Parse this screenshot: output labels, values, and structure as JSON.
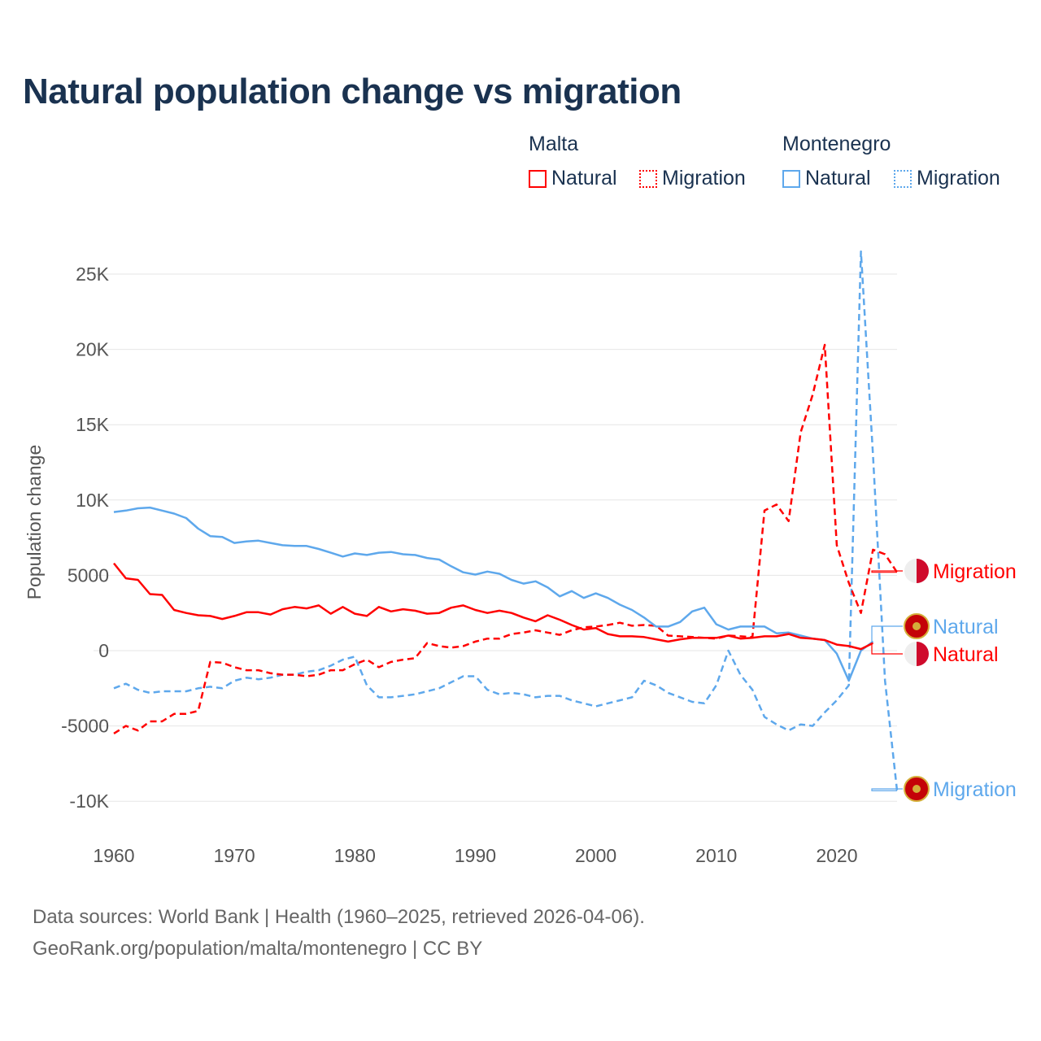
{
  "title": "Natural population change vs migration",
  "legend": {
    "groups": [
      {
        "name": "Malta",
        "items": [
          {
            "label": "Natural",
            "style": "solid"
          },
          {
            "label": "Migration",
            "style": "dotted"
          }
        ],
        "color": "#ff0000"
      },
      {
        "name": "Montenegro",
        "items": [
          {
            "label": "Natural",
            "style": "solid"
          },
          {
            "label": "Migration",
            "style": "dotted"
          }
        ],
        "color": "#5ea8ec"
      }
    ]
  },
  "source": {
    "line1": "Data sources: World Bank | Health (1960–2025, retrieved 2026-04-06).",
    "line2": "GeoRank.org/population/malta/montenegro | CC BY"
  },
  "chart_data": {
    "type": "line",
    "title": "Natural population change vs migration",
    "xlabel": "",
    "ylabel": "Population change",
    "xlim": [
      1960,
      2025
    ],
    "ylim": [
      -10000,
      25000
    ],
    "x_ticks": [
      1960,
      1970,
      1980,
      1990,
      2000,
      2010,
      2020
    ],
    "x_tick_labels": [
      "1960",
      "1970",
      "1980",
      "1990",
      "2000",
      "2010",
      "2020"
    ],
    "y_ticks": [
      -10000,
      -5000,
      0,
      5000,
      10000,
      15000,
      20000,
      25000
    ],
    "y_tick_labels": [
      "-10K",
      "-5000",
      "0",
      "5000",
      "10K",
      "15K",
      "20K",
      "25K"
    ],
    "grid": true,
    "series": [
      {
        "name": "Malta Natural",
        "end_label": "Natural",
        "color": "#ff0000",
        "dash": false,
        "start": 1960,
        "values": [
          5800,
          4800,
          4700,
          3750,
          3700,
          2700,
          2500,
          2350,
          2300,
          2100,
          2300,
          2550,
          2550,
          2400,
          2750,
          2900,
          2800,
          3000,
          2450,
          2900,
          2450,
          2300,
          2900,
          2600,
          2750,
          2650,
          2450,
          2500,
          2850,
          3000,
          2700,
          2500,
          2650,
          2500,
          2200,
          1950,
          2350,
          2050,
          1700,
          1400,
          1500,
          1100,
          950,
          950,
          900,
          750,
          600,
          750,
          850,
          850,
          850,
          1000,
          800,
          850,
          950,
          950,
          1100,
          850,
          800,
          700,
          400,
          300,
          100,
          500
        ]
      },
      {
        "name": "Malta Migration",
        "end_label": "Migration",
        "color": "#ff0000",
        "dash": true,
        "start": 1960,
        "values": [
          -5500,
          -5000,
          -5300,
          -4700,
          -4700,
          -4200,
          -4200,
          -4000,
          -750,
          -800,
          -1100,
          -1300,
          -1300,
          -1500,
          -1600,
          -1600,
          -1700,
          -1600,
          -1300,
          -1300,
          -900,
          -600,
          -1100,
          -750,
          -600,
          -500,
          500,
          300,
          200,
          300,
          600,
          800,
          800,
          1100,
          1200,
          1350,
          1200,
          1050,
          1350,
          1550,
          1600,
          1700,
          1850,
          1650,
          1700,
          1650,
          1000,
          950,
          900,
          850,
          800,
          1000,
          950,
          900,
          9300,
          9700,
          8600,
          14500,
          17000,
          20300,
          7000,
          4500,
          2500,
          6700,
          6400,
          5200
        ]
      },
      {
        "name": "Montenegro Natural",
        "end_label": "Natural",
        "color": "#5ea8ec",
        "dash": false,
        "start": 1960,
        "values": [
          9200,
          9300,
          9450,
          9500,
          9300,
          9100,
          8800,
          8100,
          7600,
          7550,
          7150,
          7250,
          7300,
          7150,
          7000,
          6950,
          6950,
          6750,
          6500,
          6250,
          6450,
          6350,
          6500,
          6550,
          6400,
          6350,
          6150,
          6050,
          5600,
          5200,
          5050,
          5250,
          5100,
          4700,
          4450,
          4600,
          4200,
          3600,
          3950,
          3500,
          3800,
          3500,
          3050,
          2700,
          2200,
          1600,
          1600,
          1900,
          2600,
          2850,
          1750,
          1400,
          1600,
          1600,
          1600,
          1150,
          1200,
          1000,
          800,
          700,
          -200,
          -2000,
          0,
          600
        ]
      },
      {
        "name": "Montenegro Migration",
        "end_label": "Migration",
        "color": "#5ea8ec",
        "dash": true,
        "start": 1960,
        "values": [
          -2500,
          -2200,
          -2600,
          -2800,
          -2700,
          -2700,
          -2700,
          -2500,
          -2400,
          -2500,
          -2000,
          -1800,
          -1900,
          -1800,
          -1600,
          -1600,
          -1400,
          -1300,
          -1000,
          -600,
          -400,
          -2300,
          -3100,
          -3100,
          -3000,
          -2900,
          -2700,
          -2500,
          -2100,
          -1700,
          -1700,
          -2600,
          -2900,
          -2800,
          -2900,
          -3100,
          -3000,
          -3000,
          -3300,
          -3500,
          -3700,
          -3500,
          -3300,
          -3100,
          -2000,
          -2300,
          -2800,
          -3100,
          -3400,
          -3500,
          -2300,
          0,
          -1600,
          -2600,
          -4400,
          -4900,
          -5300,
          -4900,
          -5000,
          -4100,
          -3300,
          -2300,
          26500,
          13000,
          -2000,
          -9300
        ]
      }
    ]
  }
}
